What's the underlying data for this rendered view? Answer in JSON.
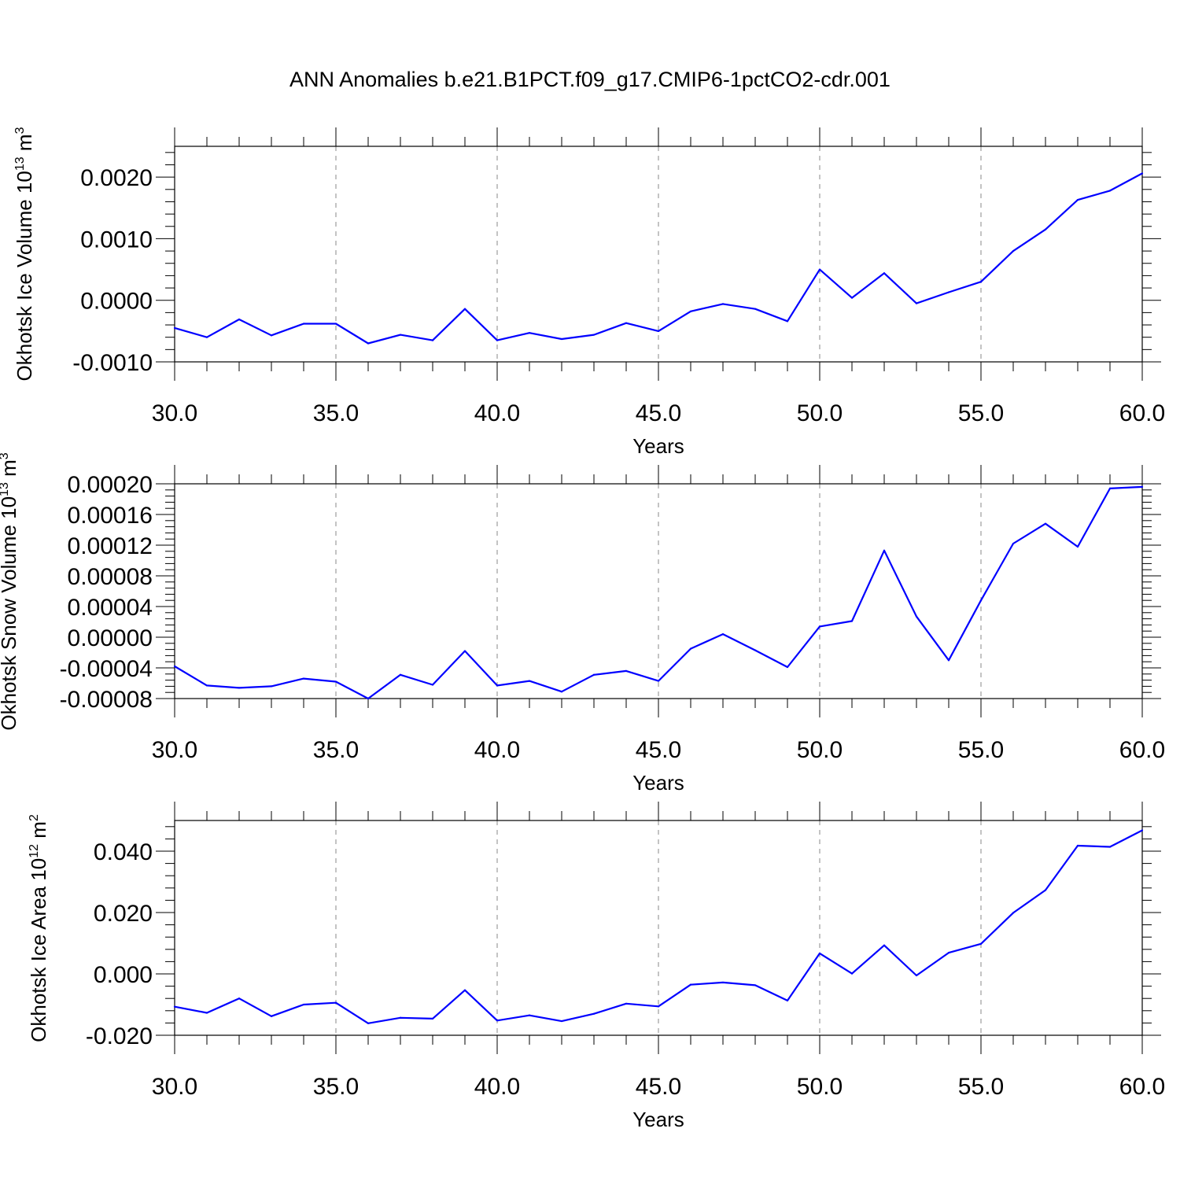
{
  "title": "ANN Anomalies b.e21.B1PCT.f09_g17.CMIP6-1pctCO2-cdr.001",
  "colors": {
    "line": "#0000ff",
    "axis": "#000000",
    "grid": "#888888"
  },
  "chart_data": [
    {
      "type": "line",
      "xlabel": "Years",
      "ylabel": {
        "base": "Okhotsk Ice Volume 10",
        "sup": "13",
        "unit": " m",
        "unitSup": "3"
      },
      "xlim": [
        30,
        60
      ],
      "ylim": [
        -0.001,
        0.0025
      ],
      "grid": "vertical dashed",
      "xticks": [
        "30.0",
        "35.0",
        "40.0",
        "45.0",
        "50.0",
        "55.0",
        "60.0"
      ],
      "yticks": [
        "-0.0010",
        "0.0000",
        "0.0010",
        "0.0020"
      ],
      "series": [
        {
          "x": [
            30,
            31,
            32,
            33,
            34,
            35,
            36,
            37,
            38,
            39,
            40,
            41,
            42,
            43,
            44,
            45,
            46,
            47,
            48,
            49,
            50,
            51,
            52,
            53,
            54,
            55,
            56,
            57,
            58,
            59,
            60
          ],
          "values": [
            -0.00045,
            -0.0006,
            -0.00031,
            -0.00057,
            -0.00038,
            -0.00038,
            -0.0007,
            -0.00056,
            -0.00065,
            -0.00014,
            -0.00065,
            -0.00053,
            -0.00063,
            -0.00056,
            -0.00037,
            -0.0005,
            -0.00018,
            -6e-05,
            -0.00014,
            -0.00034,
            0.0005,
            4e-05,
            0.00044,
            -5e-05,
            0.00013,
            0.0003,
            0.0008,
            0.00115,
            0.00163,
            0.00178,
            0.00206
          ]
        }
      ]
    },
    {
      "type": "line",
      "xlabel": "Years",
      "ylabel": {
        "base": "Okhotsk Snow Volume 10",
        "sup": "13",
        "unit": " m",
        "unitSup": "3"
      },
      "xlim": [
        30,
        60
      ],
      "ylim": [
        -8e-05,
        0.0002
      ],
      "grid": "vertical dashed",
      "xticks": [
        "30.0",
        "35.0",
        "40.0",
        "45.0",
        "50.0",
        "55.0",
        "60.0"
      ],
      "yticks": [
        "-0.00008",
        "-0.00004",
        "0.00000",
        "0.00004",
        "0.00008",
        "0.00012",
        "0.00016",
        "0.00020"
      ],
      "series": [
        {
          "x": [
            30,
            31,
            32,
            33,
            34,
            35,
            36,
            37,
            38,
            39,
            40,
            41,
            42,
            43,
            44,
            45,
            46,
            47,
            48,
            49,
            50,
            51,
            52,
            53,
            54,
            55,
            56,
            57,
            58,
            59,
            60
          ],
          "values": [
            -3.8e-05,
            -6.3e-05,
            -6.6e-05,
            -6.4e-05,
            -5.4e-05,
            -5.8e-05,
            -8e-05,
            -4.9e-05,
            -6.2e-05,
            -1.8e-05,
            -6.3e-05,
            -5.7e-05,
            -7.1e-05,
            -4.9e-05,
            -4.4e-05,
            -5.7e-05,
            -1.5e-05,
            4e-06,
            -1.7e-05,
            -3.9e-05,
            1.4e-05,
            2.1e-05,
            0.000113,
            2.7e-05,
            -3e-05,
            4.8e-05,
            0.000122,
            0.000148,
            0.000118,
            0.000194,
            0.000196
          ]
        }
      ]
    },
    {
      "type": "line",
      "xlabel": "Years",
      "ylabel": {
        "base": "Okhotsk Ice Area 10",
        "sup": "12",
        "unit": " m",
        "unitSup": "2"
      },
      "xlim": [
        30,
        60
      ],
      "ylim": [
        -0.02,
        0.05
      ],
      "grid": "vertical dashed",
      "xticks": [
        "30.0",
        "35.0",
        "40.0",
        "45.0",
        "50.0",
        "55.0",
        "60.0"
      ],
      "yticks": [
        "-0.020",
        "0.000",
        "0.020",
        "0.040"
      ],
      "series": [
        {
          "x": [
            30,
            31,
            32,
            33,
            34,
            35,
            36,
            37,
            38,
            39,
            40,
            41,
            42,
            43,
            44,
            45,
            46,
            47,
            48,
            49,
            50,
            51,
            52,
            53,
            54,
            55,
            56,
            57,
            58,
            59,
            60
          ],
          "values": [
            -0.0107,
            -0.0127,
            -0.008,
            -0.0138,
            -0.01,
            -0.0094,
            -0.0161,
            -0.0143,
            -0.0146,
            -0.0053,
            -0.0152,
            -0.0135,
            -0.0154,
            -0.013,
            -0.0097,
            -0.0106,
            -0.0035,
            -0.0028,
            -0.0037,
            -0.0087,
            0.0067,
            0.0001,
            0.0093,
            -0.0005,
            0.0069,
            0.0098,
            0.0199,
            0.0273,
            0.0418,
            0.0414,
            0.0468
          ]
        }
      ]
    }
  ]
}
